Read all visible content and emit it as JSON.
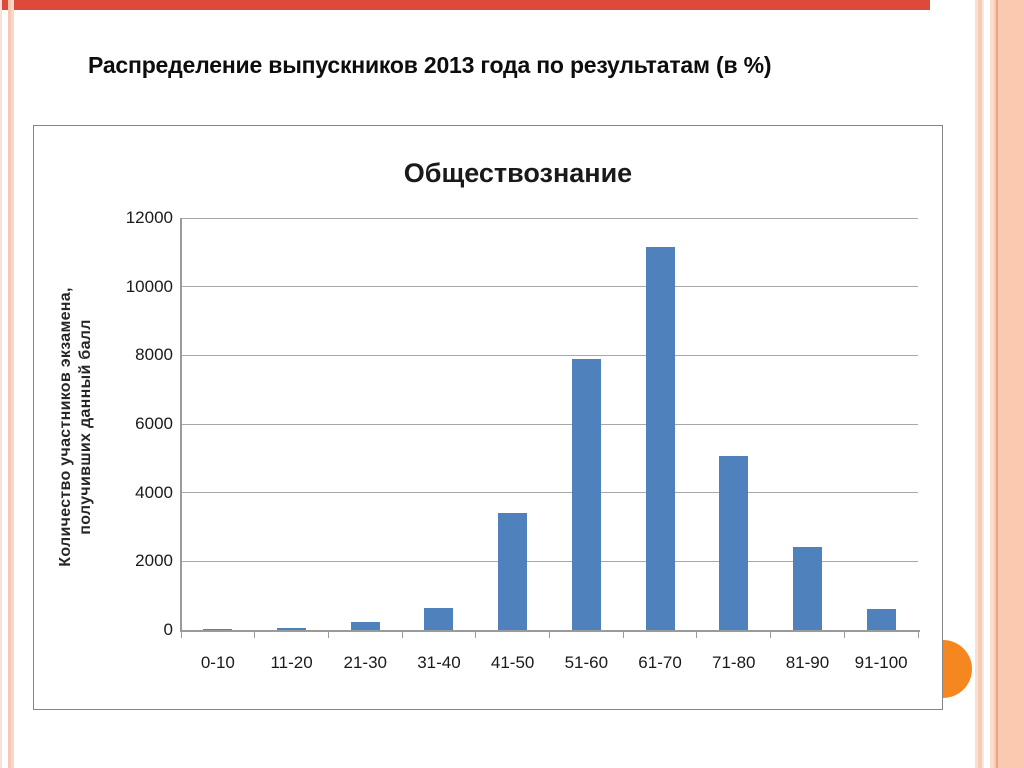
{
  "slide": {
    "title": "Распределение выпускников 2013 года по результатам (в %)"
  },
  "chart_data": {
    "type": "bar",
    "title": "Обществознание",
    "categories": [
      "0-10",
      "11-20",
      "21-30",
      "31-40",
      "41-50",
      "51-60",
      "61-70",
      "71-80",
      "81-90",
      "91-100"
    ],
    "values": [
      15,
      65,
      240,
      630,
      3410,
      7900,
      11150,
      5070,
      2430,
      620
    ],
    "ylabel_lines": [
      "Количество участников экзамена,",
      "получивших данный балл"
    ],
    "xlabel": "",
    "ylim": [
      0,
      12000
    ],
    "yticks": [
      0,
      2000,
      4000,
      6000,
      8000,
      10000,
      12000
    ],
    "grid": true,
    "legend": false,
    "bar_color": "#4F81BD",
    "gridline_color": "#a8a8a8",
    "axis_color": "#9a9a9a"
  },
  "decor": {
    "top_bar_color": "#dd4a3b",
    "accent_circle_color": "#f6861f"
  }
}
